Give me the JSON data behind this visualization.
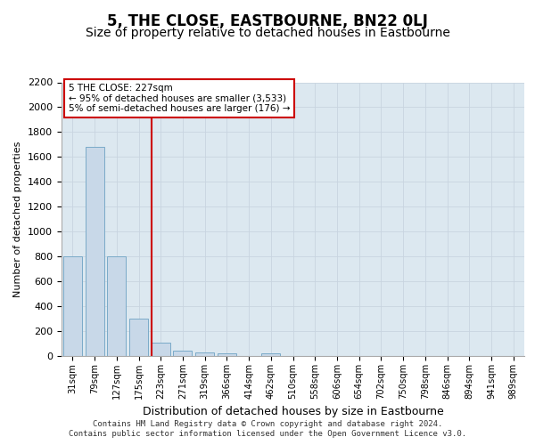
{
  "title": "5, THE CLOSE, EASTBOURNE, BN22 0LJ",
  "subtitle": "Size of property relative to detached houses in Eastbourne",
  "xlabel": "Distribution of detached houses by size in Eastbourne",
  "ylabel": "Number of detached properties",
  "footer_line1": "Contains HM Land Registry data © Crown copyright and database right 2024.",
  "footer_line2": "Contains public sector information licensed under the Open Government Licence v3.0.",
  "bins": [
    "31sqm",
    "79sqm",
    "127sqm",
    "175sqm",
    "223sqm",
    "271sqm",
    "319sqm",
    "366sqm",
    "414sqm",
    "462sqm",
    "510sqm",
    "558sqm",
    "606sqm",
    "654sqm",
    "702sqm",
    "750sqm",
    "798sqm",
    "846sqm",
    "894sqm",
    "941sqm",
    "989sqm"
  ],
  "values": [
    800,
    1680,
    800,
    300,
    110,
    40,
    30,
    20,
    0,
    20,
    0,
    0,
    0,
    0,
    0,
    0,
    0,
    0,
    0,
    0,
    0
  ],
  "bar_color": "#c8d8e8",
  "bar_edge_color": "#7aaac8",
  "vline_color": "#cc0000",
  "vline_bin_index": 4,
  "annotation_title": "5 THE CLOSE: 227sqm",
  "annotation_line2": "← 95% of detached houses are smaller (3,533)",
  "annotation_line3": "5% of semi-detached houses are larger (176) →",
  "ylim_max": 2200,
  "yticks": [
    0,
    200,
    400,
    600,
    800,
    1000,
    1200,
    1400,
    1600,
    1800,
    2000,
    2200
  ],
  "grid_color": "#c8d4e0",
  "bg_color": "#dce8f0",
  "title_fontsize": 12,
  "subtitle_fontsize": 10,
  "footer_fontsize": 6.5
}
